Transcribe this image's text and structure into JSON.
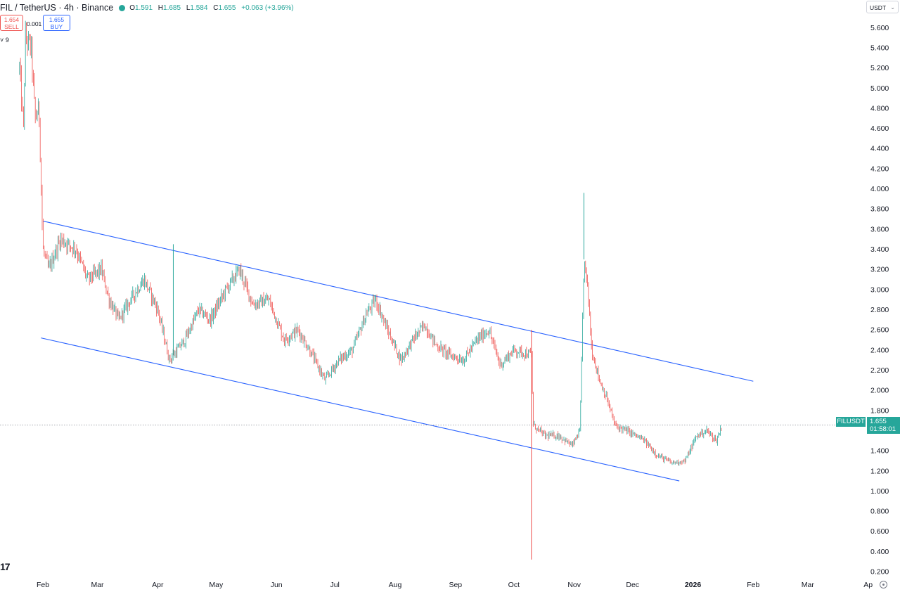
{
  "header": {
    "symbol_text": "FIL / TetherUS · 4h · Binance",
    "open_label": "O",
    "open": "1.591",
    "high_label": "H",
    "high": "1.685",
    "low_label": "L",
    "low": "1.584",
    "close_label": "C",
    "close": "1.655",
    "change": "+0.063 (+3.96%)",
    "status_color": "#26a69a"
  },
  "trade": {
    "sell_price": "1.654",
    "sell_label": "SELL",
    "spread": "0.001",
    "buy_price": "1.655",
    "buy_label": "BUY"
  },
  "indicator_toggle": "˅ 9",
  "currency": "USDT",
  "last_price": {
    "symbol": "FILUSDT",
    "price": "1.655",
    "countdown": "01:58:01"
  },
  "logo_text": "17",
  "colors": {
    "up": "#26a69a",
    "down": "#ef5350",
    "trendline": "#2962ff",
    "axis_text": "#131722",
    "price_line": "#9598a1"
  },
  "icons": [
    "tradingview-logo-icon",
    "goto-realtime-icon",
    "chevron-down-icon",
    "status-dot-icon"
  ],
  "chart_data": {
    "type": "candlestick",
    "y_axis": {
      "position": "right",
      "ticks": [
        "5.600",
        "5.400",
        "5.200",
        "5.000",
        "4.800",
        "4.600",
        "4.400",
        "4.200",
        "4.000",
        "3.800",
        "3.600",
        "3.400",
        "3.200",
        "3.000",
        "2.800",
        "2.600",
        "2.400",
        "2.200",
        "2.000",
        "1.800",
        "1.600",
        "1.400",
        "1.200",
        "1.000",
        "0.800",
        "0.600",
        "0.400",
        "0.200"
      ],
      "ylim": [
        0.12,
        5.75
      ]
    },
    "x_axis": {
      "ticks": [
        "Feb",
        "Mar",
        "Apr",
        "May",
        "Jun",
        "Jul",
        "Aug",
        "Sep",
        "Oct",
        "Nov",
        "Dec",
        "2026",
        "Feb",
        "Mar",
        "Ap"
      ],
      "tick_dates": [
        "2025-02-01",
        "2025-03-01",
        "2025-04-01",
        "2025-05-01",
        "2025-06-01",
        "2025-07-01",
        "2025-08-01",
        "2025-09-01",
        "2025-10-01",
        "2025-11-01",
        "2025-12-01",
        "2026-01-01",
        "2026-02-01",
        "2026-03-01",
        "2026-04-01"
      ]
    },
    "price_path": [
      [
        "2025-01-20",
        5.2
      ],
      [
        "2025-01-22",
        4.6
      ],
      [
        "2025-01-23",
        5.5
      ],
      [
        "2025-01-26",
        5.4
      ],
      [
        "2025-01-28",
        4.7
      ],
      [
        "2025-01-30",
        4.8
      ],
      [
        "2025-02-01",
        3.4
      ],
      [
        "2025-02-04",
        3.2
      ],
      [
        "2025-02-10",
        3.5
      ],
      [
        "2025-02-18",
        3.4
      ],
      [
        "2025-02-24",
        3.1
      ],
      [
        "2025-03-03",
        3.2
      ],
      [
        "2025-03-07",
        2.9
      ],
      [
        "2025-03-12",
        2.7
      ],
      [
        "2025-03-18",
        2.9
      ],
      [
        "2025-03-25",
        3.1
      ],
      [
        "2025-04-01",
        2.8
      ],
      [
        "2025-04-07",
        2.3
      ],
      [
        "2025-04-15",
        2.5
      ],
      [
        "2025-04-22",
        2.8
      ],
      [
        "2025-04-28",
        2.7
      ],
      [
        "2025-05-06",
        3.0
      ],
      [
        "2025-05-13",
        3.2
      ],
      [
        "2025-05-20",
        2.85
      ],
      [
        "2025-05-28",
        2.9
      ],
      [
        "2025-06-05",
        2.5
      ],
      [
        "2025-06-12",
        2.6
      ],
      [
        "2025-06-18",
        2.4
      ],
      [
        "2025-06-26",
        2.1
      ],
      [
        "2025-07-03",
        2.3
      ],
      [
        "2025-07-10",
        2.4
      ],
      [
        "2025-07-17",
        2.75
      ],
      [
        "2025-07-22",
        2.9
      ],
      [
        "2025-07-28",
        2.6
      ],
      [
        "2025-08-04",
        2.3
      ],
      [
        "2025-08-10",
        2.5
      ],
      [
        "2025-08-16",
        2.65
      ],
      [
        "2025-08-22",
        2.45
      ],
      [
        "2025-08-29",
        2.35
      ],
      [
        "2025-09-05",
        2.3
      ],
      [
        "2025-09-12",
        2.5
      ],
      [
        "2025-09-18",
        2.6
      ],
      [
        "2025-09-24",
        2.25
      ],
      [
        "2025-10-01",
        2.4
      ],
      [
        "2025-10-10",
        2.35
      ],
      [
        "2025-10-11",
        1.65
      ],
      [
        "2025-10-17",
        1.55
      ],
      [
        "2025-10-24",
        1.55
      ],
      [
        "2025-10-31",
        1.45
      ],
      [
        "2025-11-04",
        1.6
      ],
      [
        "2025-11-06",
        3.3
      ],
      [
        "2025-11-08",
        3.0
      ],
      [
        "2025-11-10",
        2.4
      ],
      [
        "2025-11-14",
        2.1
      ],
      [
        "2025-11-18",
        1.9
      ],
      [
        "2025-11-22",
        1.65
      ],
      [
        "2025-11-30",
        1.58
      ],
      [
        "2025-12-07",
        1.5
      ],
      [
        "2025-12-14",
        1.35
      ],
      [
        "2025-12-21",
        1.28
      ],
      [
        "2025-12-28",
        1.3
      ],
      [
        "2026-01-03",
        1.55
      ],
      [
        "2026-01-08",
        1.6
      ],
      [
        "2026-01-13",
        1.5
      ],
      [
        "2026-01-16",
        1.655
      ]
    ],
    "notable_wicks": [
      {
        "date": "2025-04-09",
        "high": 3.45
      },
      {
        "date": "2025-10-10",
        "low": 0.32,
        "high": 2.6
      },
      {
        "date": "2025-11-06",
        "high": 3.96
      }
    ],
    "trendlines": [
      {
        "from": [
          "2025-02-01",
          3.68
        ],
        "to": [
          "2026-02-01",
          2.09
        ]
      },
      {
        "from": [
          "2025-01-31",
          2.52
        ],
        "to": [
          "2025-12-25",
          1.1
        ]
      }
    ],
    "last_price_line": 1.655
  }
}
